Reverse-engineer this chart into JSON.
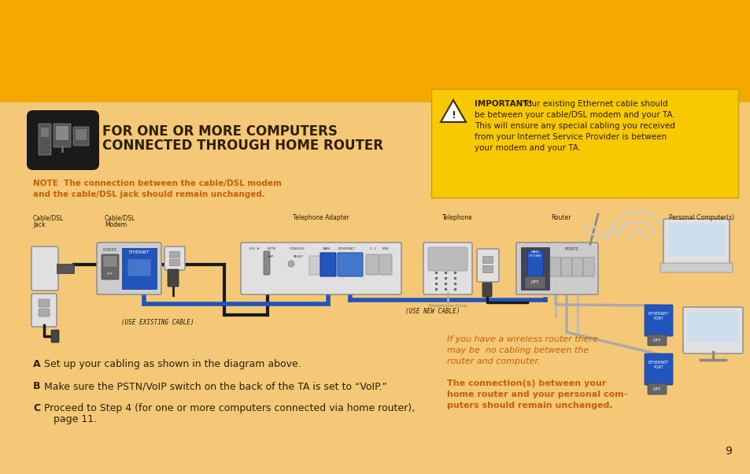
{
  "bg_top_color": "#F5A800",
  "bg_bottom_color": "#F5C878",
  "title_text1": "FOR ONE OR MORE COMPUTERS",
  "title_text2": "CONNECTED THROUGH HOME ROUTER",
  "note_text1": "NOTE  The connection between the cable/DSL modem",
  "note_text2": "and the cable/DSL jack should remain unchanged.",
  "important_box_color": "#F8C800",
  "important_title": "IMPORTANT!",
  "important_body1": " Your existing Ethernet cable should",
  "important_body2": "be between your cable/DSL modem and your TA.",
  "important_body3": "This will ensure any special cabling you received",
  "important_body4": "from your Internet Service Provider is between",
  "important_body5": "your modem and your TA.",
  "step_a": "Set up your cabling as shown in the diagram above.",
  "step_b": "Make sure the PSTN/VoIP switch on the back of the TA is set to “VoIP.”",
  "step_c1": "Proceed to Step 4 (for one or more computers connected via home router),",
  "step_c2": "page 11.",
  "wireless_note1a": "If you have a wireless router there",
  "wireless_note1b": "may be  no cabling between the",
  "wireless_note1c": "router and computer.",
  "wireless_note2a": "The connection(s) between your",
  "wireless_note2b": "home router and your personal com-",
  "wireless_note2c": "puters should remain unchanged.",
  "label_jack": "Cable/DSL",
  "label_jack2": "Jack",
  "label_modem": "Cable/DSL",
  "label_modem2": "Modem",
  "label_ta": "Telephone Adapter",
  "label_telephone": "Telephone",
  "label_router": "Router",
  "label_pc": "Personal Computer(s)",
  "use_existing": "(USE EXISTING CABLE)",
  "use_new": "(USE NEW CABLE)",
  "telephone_cord": "Telephone Cord",
  "page_num": "9",
  "orange_header": "#F5A800",
  "light_bg": "#F5C878",
  "dark_text": "#2D1F00",
  "orange_text": "#C86000",
  "blue_cable": "#2255BB",
  "black_cable": "#1A1A1A",
  "gray_device": "#CCCCCC",
  "light_gray": "#E0E0E0",
  "blue_port": "#2255BB",
  "dark_gray": "#888888"
}
